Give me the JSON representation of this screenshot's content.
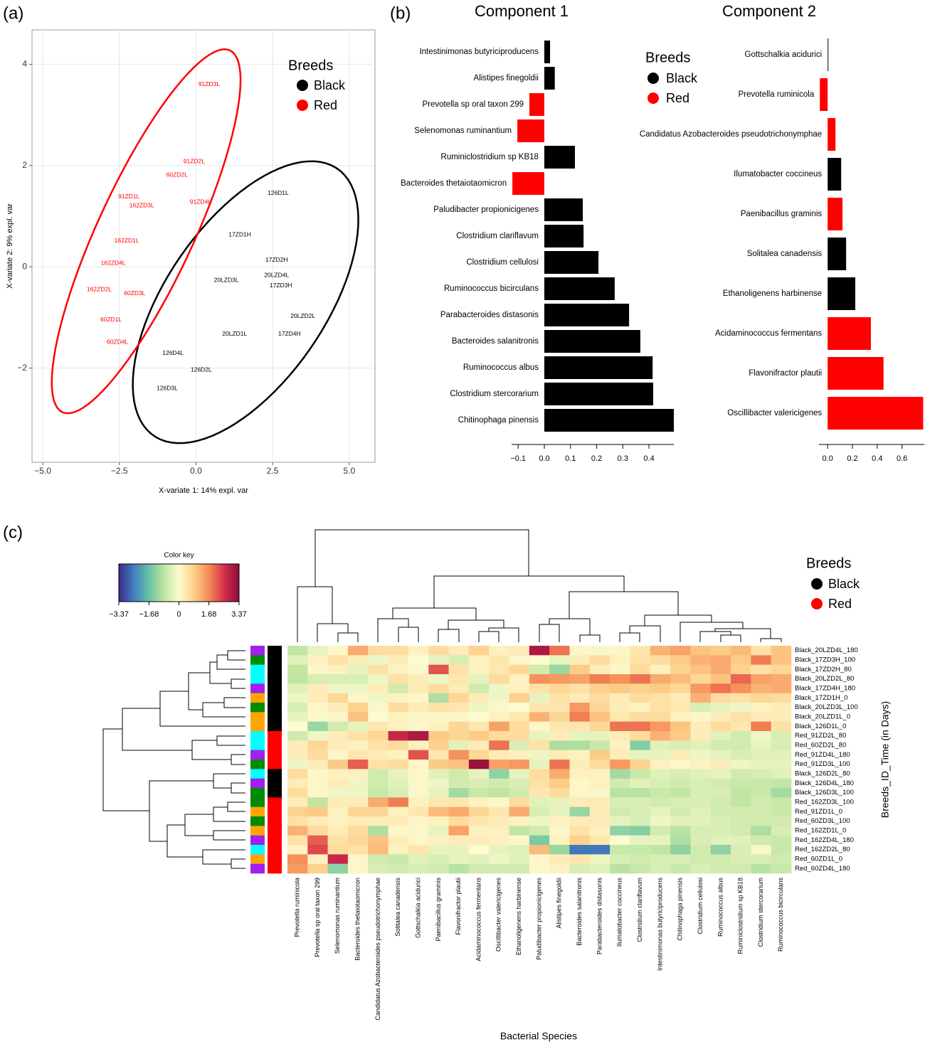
{
  "chart_data": [
    {
      "type": "scatter",
      "panel_label": "(a)",
      "xlabel": "X-variate 1: 14% expl. var",
      "ylabel": "X-variate 2: 9% expl. var",
      "xlim": [
        -5.35,
        5.84
      ],
      "ylim": [
        -3.86,
        4.68
      ],
      "xticks": [
        {
          "value": -5,
          "label": "−5.0"
        },
        {
          "value": -2.5,
          "label": "−2.5"
        },
        {
          "value": 0,
          "label": "0.0"
        },
        {
          "value": 2.5,
          "label": "2.5"
        },
        {
          "value": 5,
          "label": "5.0"
        }
      ],
      "yticks": [
        {
          "value": -2,
          "label": "−2"
        },
        0,
        2,
        4
      ],
      "grid": true,
      "legend_title": "Breeds",
      "series": [
        {
          "name": "Black",
          "color": "#000000",
          "labels": [
            "126D1L",
            "17ZD1H",
            "17ZD2H",
            "20LZD4L",
            "20LZD3L",
            "17ZD3H",
            "20LZD2L",
            "20LZD1L",
            "17ZD4H",
            "126D4L",
            "126D2L",
            "126D3L"
          ],
          "x": [
            2.68,
            1.43,
            2.63,
            2.63,
            0.99,
            2.77,
            3.49,
            1.26,
            3.05,
            -0.75,
            0.17,
            -0.94
          ],
          "values": [
            1.45,
            0.63,
            0.13,
            -0.17,
            -0.27,
            -0.37,
            -0.98,
            -1.33,
            -1.33,
            -1.71,
            -2.04,
            -2.4
          ]
        },
        {
          "name": "Red",
          "color": "#ff0000",
          "labels": [
            "91ZD3L",
            "91ZD2L",
            "60ZD2L",
            "91ZD1L",
            "162ZD3L",
            "91ZD4L",
            "162ZD1L",
            "162ZD4L",
            "162ZD2L",
            "60ZD3L",
            "60ZD1L",
            "60ZD4L"
          ],
          "x": [
            0.43,
            -0.06,
            -0.62,
            -2.19,
            -1.77,
            0.15,
            -2.26,
            -2.7,
            -3.16,
            -2.0,
            -2.77,
            -2.56
          ],
          "values": [
            3.6,
            2.08,
            1.81,
            1.38,
            1.21,
            1.28,
            0.51,
            0.07,
            -0.45,
            -0.53,
            -1.05,
            -1.49
          ]
        }
      ]
    },
    {
      "type": "hbar",
      "panel_label": "(b)",
      "title": "Component 1",
      "categories": [
        "Intestinimonas butyriciproducens",
        "Alistipes finegoldii",
        "Prevotella sp oral taxon 299",
        "Selenomonas ruminantium",
        "Ruminiclostridium sp KB18",
        "Bacteroides thetaiotaomicron",
        "Paludibacter propionicigenes",
        "Clostridium clariflavum",
        "Clostridium cellulosi",
        "Ruminococcus bicirculans",
        "Parabacteroides distasonis",
        "Bacteroides salanitronis",
        "Ruminococcus albus",
        "Clostridium stercorarium",
        "Chitinophaga pinensis"
      ],
      "values": [
        0.022,
        0.04,
        -0.057,
        -0.103,
        0.117,
        -0.122,
        0.147,
        0.15,
        0.207,
        0.269,
        0.324,
        0.367,
        0.414,
        0.416,
        0.495
      ],
      "colors": [
        "#000000",
        "#000000",
        "#ff0000",
        "#ff0000",
        "#000000",
        "#ff0000",
        "#000000",
        "#000000",
        "#000000",
        "#000000",
        "#000000",
        "#000000",
        "#000000",
        "#000000",
        "#000000"
      ],
      "xlim": [
        -0.125,
        0.495
      ],
      "xticks": [
        {
          "value": -0.1,
          "label": "−0.1"
        },
        {
          "value": 0,
          "label": "0.0"
        },
        0.1,
        0.2,
        0.3,
        0.4
      ],
      "legend_title": "Breeds",
      "legend": [
        {
          "name": "Black",
          "color": "#000000"
        },
        {
          "name": "Red",
          "color": "#ff0000"
        }
      ]
    },
    {
      "type": "hbar",
      "title": "Component 2",
      "categories": [
        "Gottschalkia acidurici",
        "Prevotella ruminicola",
        "Candidatus Azobacteroides pseudotrichonymphae",
        "Ilumatobacter coccineus",
        "Paenibacillus graminis",
        "Solitalea canadensis",
        "Ethanoligenens harbinense",
        "Acidaminococcus fermentans",
        "Flavonifractor plautii",
        "Oscillibacter valericigenes"
      ],
      "values": [
        0.002,
        -0.063,
        0.063,
        0.109,
        0.12,
        0.149,
        0.223,
        0.349,
        0.451,
        0.771
      ],
      "colors": [
        "#000000",
        "#ff0000",
        "#ff0000",
        "#000000",
        "#ff0000",
        "#000000",
        "#000000",
        "#ff0000",
        "#ff0000",
        "#ff0000"
      ],
      "xlim": [
        -0.07,
        0.78
      ],
      "xticks": [
        {
          "value": 0,
          "label": "0.0"
        },
        0.2,
        0.4,
        0.6
      ]
    },
    {
      "type": "heatmap",
      "panel_label": "(c)",
      "xlabel": "Bacterial Species",
      "ylabel": "Breeds_ID_Time (in Days)",
      "colorbar_title": "Color key",
      "zlim": [
        -3.37,
        3.37
      ],
      "colorbar_ticks": [
        {
          "value": -3.37,
          "label": "−3.37"
        },
        {
          "value": -1.68,
          "label": "−1.68"
        },
        0,
        1.68,
        3.37
      ],
      "colormap": [
        "#3b2a86",
        "#3f7fc0",
        "#66c2a5",
        "#bfe5a0",
        "#fdfbd0",
        "#fdd08a",
        "#f58a55",
        "#d6304a",
        "#8c0a3c"
      ],
      "legend_title": "Breeds",
      "legend": [
        {
          "name": "Black",
          "color": "#000000"
        },
        {
          "name": "Red",
          "color": "#ff0000"
        }
      ],
      "time_colors": {
        "0": "#ffa500",
        "80": "#00ffff",
        "100": "#008b00",
        "180": "#a020f0"
      },
      "x_categories": [
        "Prevotella ruminicola",
        "Prevotella sp oral taxon 299",
        "Selenomonas ruminantium",
        "Bacteroides thetaiotaomicron",
        "Candidatus Azobacteroides pseudotrichonymphae",
        "Solitalea canadensis",
        "Gottschalkia acidurici",
        "Paenibacillus graminis",
        "Flavonifractor plautii",
        "Acidaminococcus fermentans",
        "Oscillibacter valericigenes",
        "Ethanoligenens harbinense",
        "Paludibacter propionicigenes",
        "Alistipes finegoldii",
        "Bacteroides salanitronis",
        "Parabacteroides distasonis",
        "Ilumatobacter coccineus",
        "Clostridium  clariflavum",
        "Intestinimonas butyriciproducens",
        "Chitinophaga pinensis",
        "Clostridium  cellulosi",
        "Ruminococcus albus",
        "Ruminiclostridium sp KB18",
        "Clostridium  stercorarium",
        "Ruminococcus bicirculans"
      ],
      "y_categories": [
        "Black_20LZD4L_180",
        "Black_17ZD3H_100",
        "Black_17ZD2H_80",
        "Black_20LZD2L_80",
        "Black_17ZD4H_180",
        "Black_17ZD1H_0",
        "Black_20LZD3L_100",
        "Black_20LZD1L_0",
        "Black_126D1L_0",
        "Red_91ZD2L_80",
        "Red_60ZD2L_80",
        "Red_91ZD4L_180",
        "Red_91ZD3L_100",
        "Black_126D2L_80",
        "Black_126D4L_180",
        "Black_126D3L_100",
        "Red_162ZD3L_100",
        "Red_91ZD1L_0",
        "Red_60ZD3L_100",
        "Red_162ZD1L_0",
        "Red_162ZD4L_180",
        "Red_162ZD2L_80",
        "Red_60ZD1L_0",
        "Red_60ZD4L_180"
      ],
      "values": [
        [
          -0.8,
          -0.3,
          0.1,
          1.3,
          0.6,
          0.6,
          0.2,
          0.6,
          0.3,
          0.8,
          0.2,
          0.3,
          3.0,
          1.9,
          0.1,
          -0.1,
          0.1,
          0.4,
          1.2,
          1.4,
          1.0,
          0.9,
          1.1,
          0.5,
          1.0
        ],
        [
          -0.4,
          0.2,
          0.5,
          0.3,
          -0.2,
          0.3,
          0.0,
          -0.3,
          -0.5,
          0.2,
          0.4,
          0.1,
          0.0,
          -0.3,
          0.3,
          0.6,
          0.2,
          0.5,
          0.6,
          0.9,
          1.2,
          1.3,
          0.9,
          1.8,
          1.0
        ],
        [
          -0.8,
          0.1,
          0.2,
          -0.3,
          0.5,
          0.2,
          0.1,
          2.2,
          0.5,
          0.2,
          0.4,
          0.7,
          -0.6,
          -1.2,
          0.9,
          0.3,
          0.1,
          0.6,
          0.2,
          0.8,
          1.0,
          1.3,
          0.8,
          0.5,
          0.7
        ],
        [
          -0.8,
          -0.5,
          -0.5,
          -0.5,
          -0.2,
          0.5,
          0.3,
          -0.2,
          0.4,
          -0.3,
          0.6,
          0.2,
          1.6,
          1.5,
          1.4,
          1.8,
          1.6,
          1.9,
          1.3,
          1.1,
          0.7,
          1.0,
          2.0,
          1.4,
          1.3
        ],
        [
          -0.4,
          0.3,
          -0.2,
          -0.2,
          0.3,
          -0.6,
          0.3,
          0.6,
          0.3,
          -0.6,
          -0.2,
          0.2,
          0.5,
          0.7,
          0.5,
          0.8,
          0.9,
          0.8,
          0.9,
          0.7,
          1.5,
          1.9,
          1.6,
          1.2,
          1.3
        ],
        [
          -0.2,
          0.3,
          0.7,
          0.1,
          -0.2,
          0.2,
          0.1,
          -1.0,
          0.7,
          0.3,
          -0.2,
          0.8,
          -0.3,
          0.5,
          0.3,
          0.6,
          0.3,
          0.6,
          0.5,
          0.3,
          1.2,
          0.6,
          0.5,
          0.7,
          0.6
        ],
        [
          -0.5,
          0.1,
          0.3,
          0.8,
          0.1,
          0.6,
          0.3,
          0.5,
          0.4,
          -0.2,
          0.1,
          0.0,
          0.4,
          0.4,
          1.5,
          0.7,
          0.3,
          0.2,
          0.5,
          0.4,
          -0.5,
          -0.3,
          -0.2,
          0.2,
          0.3
        ],
        [
          -0.3,
          0.1,
          0.1,
          1.0,
          0.0,
          0.2,
          0.1,
          0.1,
          0.1,
          0.0,
          0.2,
          0.4,
          1.2,
          0.7,
          1.8,
          1.0,
          0.4,
          0.6,
          0.6,
          0.2,
          0.1,
          0.3,
          0.5,
          0.3,
          0.3
        ],
        [
          0.0,
          -1.2,
          -0.6,
          -0.3,
          0.4,
          0.2,
          0.1,
          0.2,
          0.7,
          0.4,
          1.4,
          0.6,
          0.1,
          0.4,
          0.4,
          0.7,
          1.9,
          1.9,
          1.5,
          1.0,
          0.3,
          0.6,
          0.4,
          1.8,
          0.5
        ],
        [
          -0.6,
          -0.2,
          0.3,
          0.5,
          0.7,
          2.7,
          3.0,
          0.9,
          0.7,
          0.9,
          0.6,
          0.6,
          -0.3,
          0.3,
          -0.3,
          -0.3,
          0.3,
          0.6,
          1.2,
          0.9,
          0.3,
          -0.4,
          -0.6,
          -0.2,
          -0.5
        ],
        [
          0.3,
          0.7,
          0.3,
          0.2,
          0.5,
          0.6,
          0.2,
          0.8,
          -0.4,
          0.3,
          1.9,
          -0.5,
          0.5,
          -1.0,
          -1.0,
          -0.7,
          0.2,
          -1.4,
          -0.4,
          -0.5,
          -0.4,
          -0.6,
          -0.6,
          -0.3,
          -0.5
        ],
        [
          0.3,
          0.6,
          0.1,
          0.4,
          0.3,
          0.2,
          2.2,
          0.4,
          1.6,
          0.7,
          0.3,
          0.2,
          -0.2,
          0.3,
          0.2,
          0.9,
          0.3,
          -0.3,
          -0.3,
          0.3,
          -0.2,
          -0.3,
          -0.5,
          -0.4,
          -0.4
        ],
        [
          -0.2,
          0.3,
          0.9,
          2.1,
          0.5,
          0.6,
          0.1,
          0.9,
          1.0,
          3.2,
          1.4,
          1.5,
          -0.3,
          1.9,
          0.3,
          0.6,
          1.5,
          0.8,
          0.2,
          0.1,
          0.2,
          0.3,
          -0.2,
          -0.3,
          -0.3
        ],
        [
          0.6,
          0.1,
          0.2,
          0.2,
          -0.6,
          -0.3,
          0.1,
          -0.4,
          -0.6,
          -0.3,
          -1.3,
          -0.3,
          0.6,
          1.3,
          0.2,
          0.2,
          -1.1,
          -0.7,
          -0.4,
          -0.5,
          -0.4,
          -0.3,
          -0.6,
          -0.5,
          -0.4
        ],
        [
          0.3,
          0.1,
          0.3,
          -0.2,
          -0.6,
          -0.4,
          0.1,
          -0.2,
          -0.6,
          -0.5,
          -0.6,
          -0.5,
          0.5,
          0.9,
          0.1,
          0.2,
          -0.6,
          -0.4,
          -0.5,
          -0.6,
          -0.5,
          -0.6,
          -0.7,
          -0.7,
          -0.8
        ],
        [
          0.6,
          0.1,
          -0.2,
          -0.2,
          -0.7,
          -0.5,
          0.1,
          -0.3,
          -1.1,
          -0.7,
          -0.8,
          -0.6,
          0.4,
          0.6,
          0.1,
          -0.1,
          -0.9,
          -0.9,
          -0.7,
          -0.8,
          -0.5,
          -0.5,
          -0.8,
          -0.7,
          -1.1
        ],
        [
          0.3,
          -0.8,
          0.3,
          0.3,
          1.3,
          1.8,
          0.2,
          0.4,
          0.4,
          0.2,
          0.1,
          0.6,
          -0.4,
          -0.3,
          0.3,
          0.3,
          -0.5,
          -0.5,
          -0.6,
          -0.5,
          -0.5,
          -0.6,
          -0.8,
          -0.6,
          -0.7
        ],
        [
          0.8,
          0.9,
          0.2,
          0.7,
          0.7,
          0.2,
          0.4,
          1.1,
          1.3,
          0.7,
          0.4,
          1.3,
          -0.5,
          -0.3,
          -1.2,
          0.3,
          -0.6,
          -0.5,
          -0.3,
          -0.6,
          -0.4,
          -0.6,
          -0.6,
          -0.6,
          -0.7
        ],
        [
          0.5,
          0.3,
          0.2,
          0.3,
          0.3,
          0.3,
          0.1,
          0.2,
          0.6,
          0.4,
          0.3,
          0.2,
          -0.2,
          0.2,
          0.3,
          0.3,
          -0.3,
          -0.5,
          -0.2,
          -0.4,
          -0.4,
          -0.5,
          -0.6,
          -0.6,
          -0.6
        ],
        [
          1.2,
          0.6,
          0.3,
          0.6,
          -1.0,
          0.1,
          0.1,
          -0.3,
          1.4,
          0.2,
          0.2,
          -0.8,
          -0.6,
          0.1,
          0.5,
          0.2,
          -1.3,
          -1.4,
          -0.6,
          -0.9,
          -0.5,
          -0.5,
          -0.6,
          -1.0,
          -0.5
        ],
        [
          0.5,
          2.1,
          0.5,
          0.7,
          1.0,
          0.3,
          0.1,
          0.2,
          0.3,
          0.3,
          0.2,
          0.1,
          -1.5,
          0.2,
          0.8,
          0.4,
          0.0,
          -0.3,
          -0.3,
          -1.0,
          -0.5,
          -0.4,
          -0.4,
          -0.6,
          -0.7
        ],
        [
          0.2,
          2.3,
          0.6,
          0.5,
          1.1,
          0.2,
          0.4,
          -0.3,
          -0.3,
          0.0,
          -0.3,
          -0.4,
          1.1,
          -1.2,
          -2.6,
          -2.6,
          -0.7,
          -0.7,
          -0.8,
          -1.3,
          -0.6,
          -1.3,
          -0.5,
          -0.1,
          -0.7
        ],
        [
          1.6,
          0.2,
          2.7,
          0.1,
          -0.6,
          -0.7,
          -0.4,
          -0.5,
          -0.3,
          -0.4,
          -0.2,
          -0.4,
          0.1,
          0.3,
          0.4,
          -0.2,
          -0.5,
          -0.6,
          -0.5,
          -0.5,
          -0.6,
          -0.6,
          -0.5,
          -0.5,
          -0.6
        ],
        [
          1.5,
          0.8,
          -1.3,
          0.1,
          -0.5,
          -0.6,
          -0.5,
          -0.6,
          -0.9,
          -0.6,
          -0.6,
          -0.6,
          0.1,
          0.2,
          -0.5,
          -0.4,
          -0.9,
          -0.7,
          -0.5,
          -0.7,
          -0.5,
          -0.6,
          -0.6,
          -0.9,
          -0.7
        ]
      ]
    }
  ]
}
